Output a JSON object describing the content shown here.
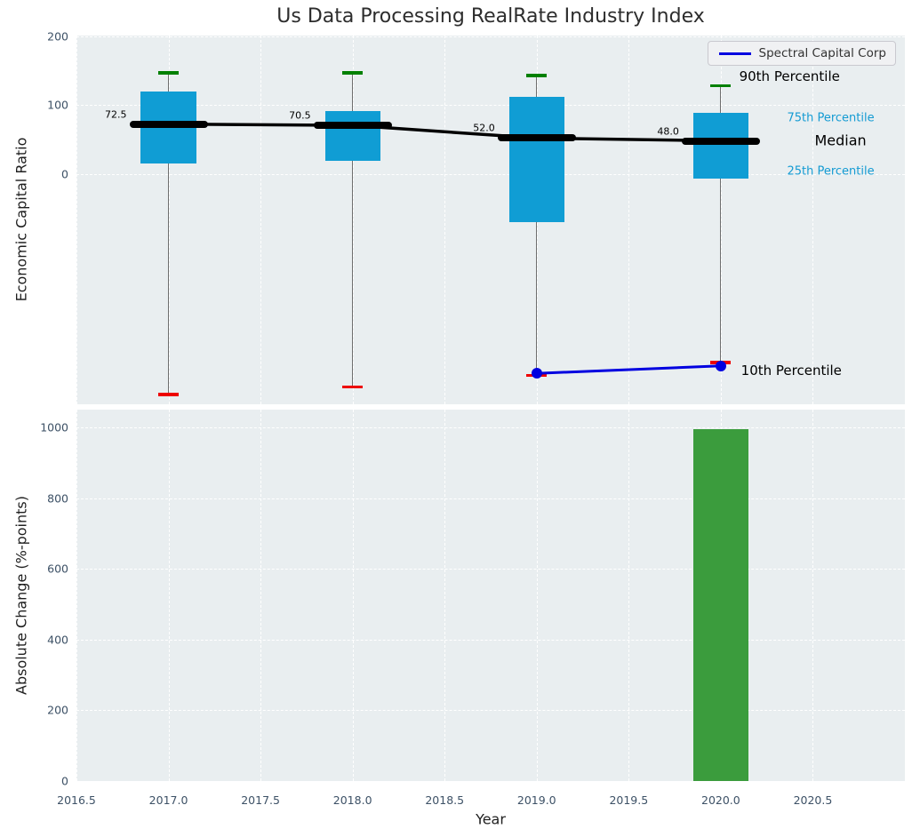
{
  "title": "Us Data Processing RealRate Industry Index",
  "colors": {
    "figure_bg": "#ffffff",
    "panel_bg": "#e9eef0",
    "grid": "#ffffff",
    "tick_label": "#3d5166",
    "title_color": "#2d2d2d",
    "box_fill": "#109dd4",
    "median_line": "#000000",
    "whisker": "#6e6e6e",
    "cap_upper": "#008000",
    "cap_lower": "#ee0000",
    "series_line": "#0000e0",
    "bar_fill": "#3b9c3d",
    "percentile_label": "#149bd3",
    "legend_bg": "#f0f1f3",
    "legend_border": "#c9c9cf"
  },
  "chart_data": [
    {
      "type": "boxplot",
      "title": "Us Data Processing RealRate Industry Index",
      "ylabel": "Economic Capital Ratio",
      "xlim": [
        2016.5,
        2021.0
      ],
      "ylim": [
        -336,
        201.5
      ],
      "yticks": [
        0,
        100,
        200
      ],
      "yticklabels": [
        "0",
        "100",
        "200"
      ],
      "xticks": [
        2016.5,
        2017.0,
        2017.5,
        2018.0,
        2018.5,
        2019.0,
        2019.5,
        2020.0,
        2020.5
      ],
      "xticklabels": [
        "2016.5",
        "2017.0",
        "2017.5",
        "2018.0",
        "2018.5",
        "2019.0",
        "2019.5",
        "2020.0",
        "2020.5"
      ],
      "grid": "white-dashed",
      "box_width_years": 0.3,
      "cap_width_years": 0.11,
      "boxes": [
        {
          "year": 2017,
          "p90": 147,
          "p75": 120,
          "median": 72.5,
          "p25": 15,
          "p10": -322,
          "label": "72.5"
        },
        {
          "year": 2018,
          "p90": 147,
          "p75": 92,
          "median": 70.5,
          "p25": 19,
          "p10": -311,
          "label": "70.5"
        },
        {
          "year": 2019,
          "p90": 143,
          "p75": 112,
          "median": 52.0,
          "p25": -70,
          "p10": -294,
          "label": "52.0"
        },
        {
          "year": 2020,
          "p90": 128,
          "p75": 89,
          "median": 48.0,
          "p25": -7,
          "p10": -275,
          "label": "48.0"
        }
      ],
      "series": [
        {
          "name": "Spectral Capital Corp",
          "x": [
            2019,
            2020
          ],
          "y": [
            -291,
            -280
          ]
        }
      ],
      "legend": {
        "label": "Spectral Capital Corp",
        "position": "upper right"
      },
      "annotations": [
        {
          "text": "90th Percentile",
          "x": 2020.1,
          "y": 142,
          "color": "#000000",
          "size": 15
        },
        {
          "text": "75th Percentile",
          "x": 2020.36,
          "y": 81,
          "color": "#149bd3",
          "size": 13
        },
        {
          "text": "Median",
          "x": 2020.51,
          "y": 48.5,
          "color": "#000000",
          "size": 16
        },
        {
          "text": "25th Percentile",
          "x": 2020.36,
          "y": 3,
          "color": "#149bd3",
          "size": 13
        },
        {
          "text": "10th Percentile",
          "x": 2020.11,
          "y": -287,
          "color": "#000000",
          "size": 15
        }
      ]
    },
    {
      "type": "bar",
      "ylabel": "Absolute Change (%-points)",
      "xlabel": "Year",
      "xlim": [
        2016.5,
        2021.0
      ],
      "ylim": [
        0,
        1050
      ],
      "yticks": [
        0,
        200,
        400,
        600,
        800,
        1000
      ],
      "yticklabels": [
        "0",
        "200",
        "400",
        "600",
        "800",
        "1000"
      ],
      "bar_width_years": 0.3,
      "bars": [
        {
          "year": 2020,
          "value": 995
        }
      ]
    }
  ]
}
